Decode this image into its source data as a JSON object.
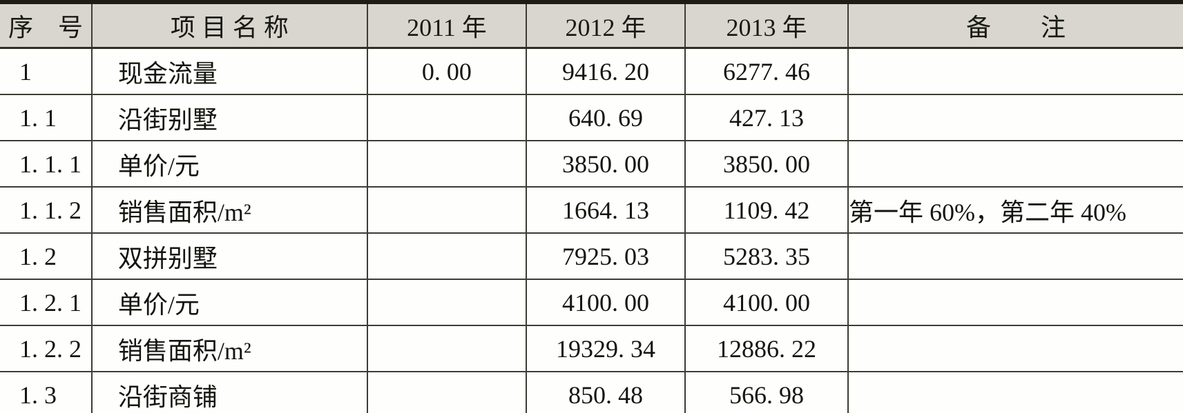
{
  "table": {
    "headers": {
      "serial": "序　号",
      "item_name": "项 目 名 称",
      "year_2011": "2011 年",
      "year_2012": "2012 年",
      "year_2013": "2013 年",
      "remark": "备　　注"
    },
    "rows": [
      {
        "no": "1",
        "name": "现金流量",
        "y2011": "0. 00",
        "y2012": "9416. 20",
        "y2013": "6277. 46",
        "remark": ""
      },
      {
        "no": "1. 1",
        "name": "沿街别墅",
        "y2011": "",
        "y2012": "640. 69",
        "y2013": "427. 13",
        "remark": ""
      },
      {
        "no": "1. 1. 1",
        "name": "单价/元",
        "y2011": "",
        "y2012": "3850. 00",
        "y2013": "3850. 00",
        "remark": ""
      },
      {
        "no": "1. 1. 2",
        "name": "销售面积/m²",
        "y2011": "",
        "y2012": "1664. 13",
        "y2013": "1109. 42",
        "remark": "第一年 60%，第二年 40%"
      },
      {
        "no": "1. 2",
        "name": "双拼别墅",
        "y2011": "",
        "y2012": "7925. 03",
        "y2013": "5283. 35",
        "remark": ""
      },
      {
        "no": "1. 2. 1",
        "name": "单价/元",
        "y2011": "",
        "y2012": "4100. 00",
        "y2013": "4100. 00",
        "remark": ""
      },
      {
        "no": "1. 2. 2",
        "name": "销售面积/m²",
        "y2011": "",
        "y2012": "19329. 34",
        "y2013": "12886. 22",
        "remark": ""
      },
      {
        "no": "1. 3",
        "name": "沿街商铺",
        "y2011": "",
        "y2012": "850. 48",
        "y2013": "566. 98",
        "remark": ""
      }
    ],
    "colors": {
      "header_bg": "#d9d6d0",
      "border_dark": "#1d1d15",
      "border_thin": "#3c3c34",
      "text": "#15150f"
    }
  }
}
